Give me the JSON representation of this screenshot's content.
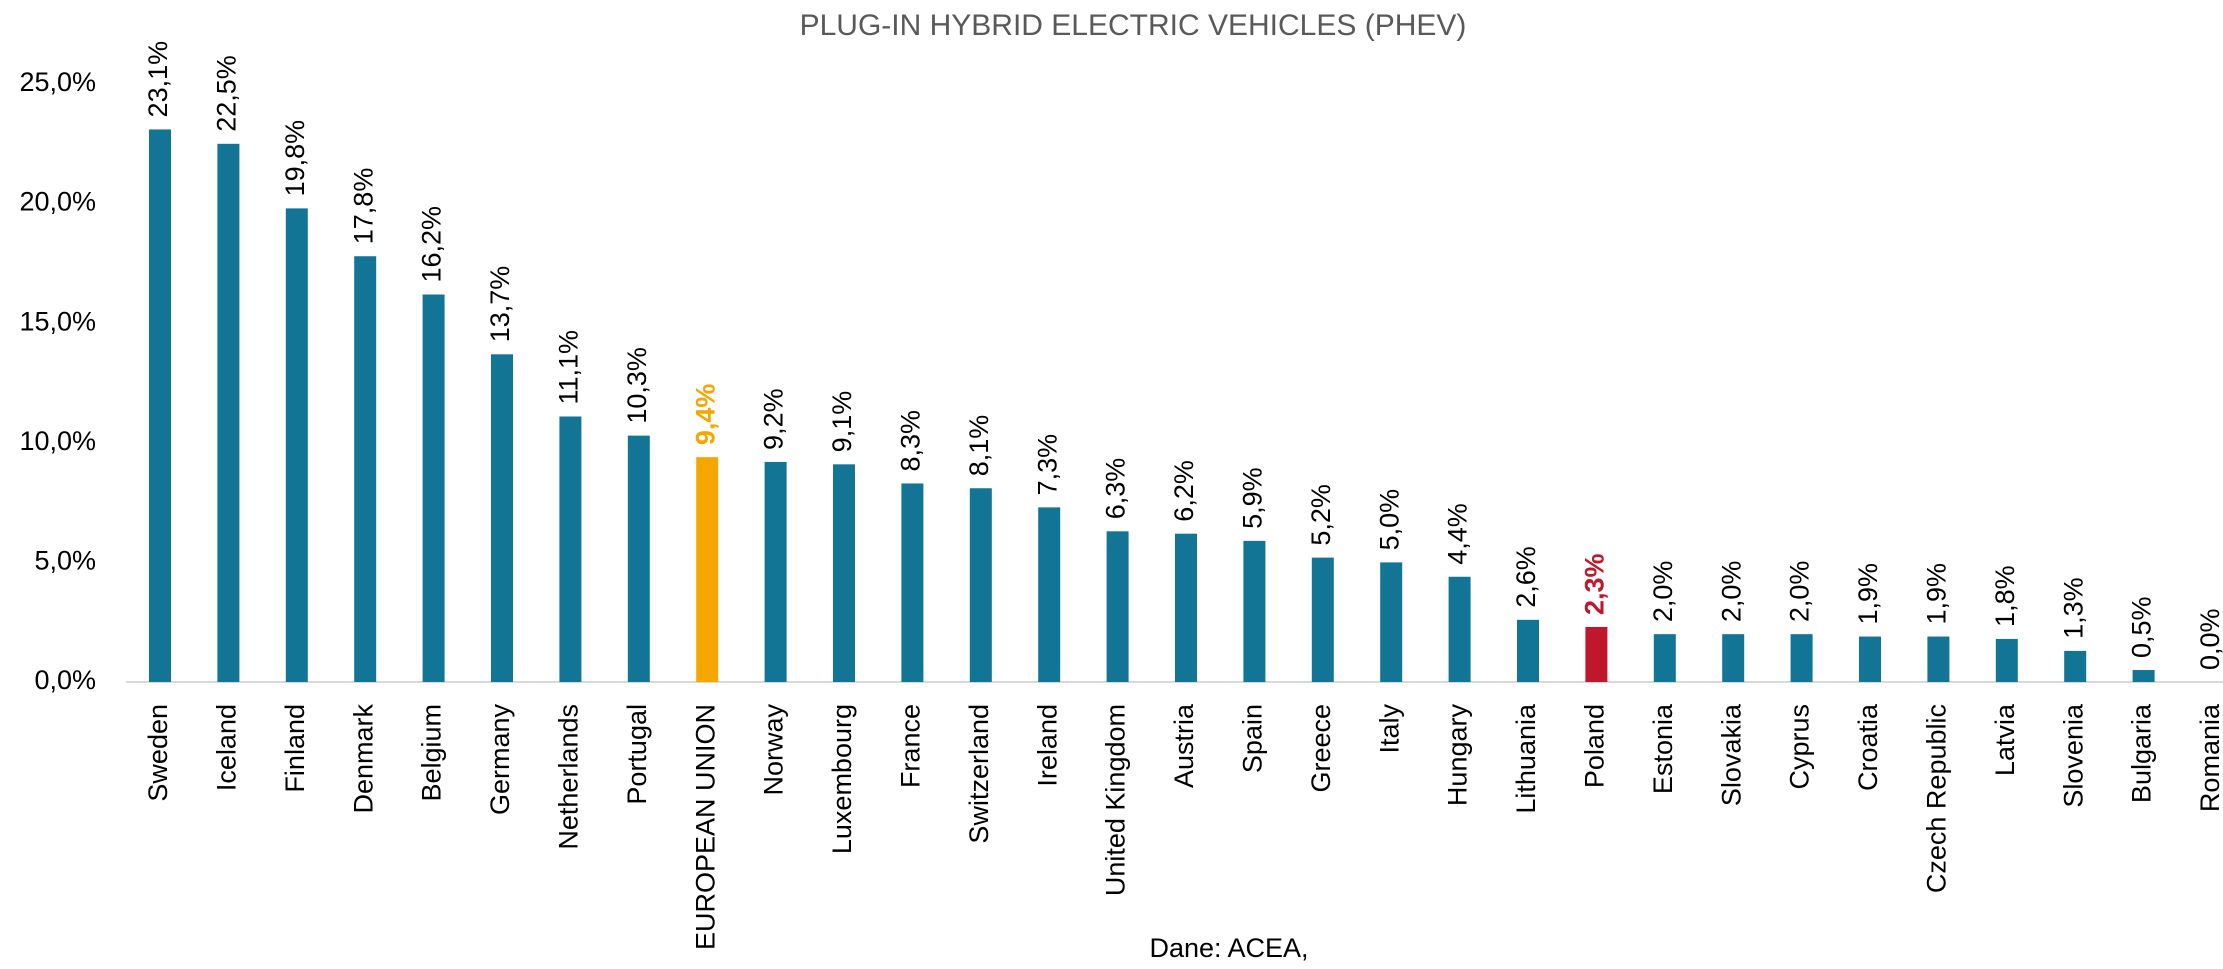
{
  "chart_data": {
    "type": "bar",
    "title": "PLUG-IN HYBRID ELECTRIC VEHICLES (PHEV)",
    "source": "Dane: ACEA,",
    "categories": [
      "Sweden",
      "Iceland",
      "Finland",
      "Denmark",
      "Belgium",
      "Germany",
      "Netherlands",
      "Portugal",
      "EUROPEAN UNION",
      "Norway",
      "Luxembourg",
      "France",
      "Switzerland",
      "Ireland",
      "United Kingdom",
      "Austria",
      "Spain",
      "Greece",
      "Italy",
      "Hungary",
      "Lithuania",
      "Poland",
      "Estonia",
      "Slovakia",
      "Cyprus",
      "Croatia",
      "Czech Republic",
      "Latvia",
      "Slovenia",
      "Bulgaria",
      "Romania"
    ],
    "values": [
      23.1,
      22.5,
      19.8,
      17.8,
      16.2,
      13.7,
      11.1,
      10.3,
      9.4,
      9.2,
      9.1,
      8.3,
      8.1,
      7.3,
      6.3,
      6.2,
      5.9,
      5.2,
      5.0,
      4.4,
      2.6,
      2.3,
      2.0,
      2.0,
      2.0,
      1.9,
      1.9,
      1.8,
      1.3,
      0.5,
      0.0
    ],
    "value_labels": [
      "23,1%",
      "22,5%",
      "19,8%",
      "17,8%",
      "16,2%",
      "13,7%",
      "11,1%",
      "10,3%",
      "9,4%",
      "9,2%",
      "9,1%",
      "8,3%",
      "8,1%",
      "7,3%",
      "6,3%",
      "6,2%",
      "5,9%",
      "5,2%",
      "5,0%",
      "4,4%",
      "2,6%",
      "2,3%",
      "2,0%",
      "2,0%",
      "2,0%",
      "1,9%",
      "1,9%",
      "1,8%",
      "1,3%",
      "0,5%",
      "0,0%"
    ],
    "color": "#127596",
    "colors": [
      "#127596",
      "#127596",
      "#127596",
      "#127596",
      "#127596",
      "#127596",
      "#127596",
      "#127596",
      "#f5a700",
      "#127596",
      "#127596",
      "#127596",
      "#127596",
      "#127596",
      "#127596",
      "#127596",
      "#127596",
      "#127596",
      "#127596",
      "#127596",
      "#127596",
      "#c0172c",
      "#127596",
      "#127596",
      "#127596",
      "#127596",
      "#127596",
      "#127596",
      "#127596",
      "#127596",
      "#127596"
    ],
    "ylim": [
      0,
      25
    ],
    "yticks": [
      {
        "value": 0,
        "label": "0,0%"
      },
      {
        "value": 5,
        "label": "5,0%"
      },
      {
        "value": 10,
        "label": "10,0%"
      },
      {
        "value": 15,
        "label": "15,0%"
      },
      {
        "value": 20,
        "label": "20,0%"
      },
      {
        "value": 25,
        "label": "25,0%"
      }
    ],
    "grid": false
  }
}
